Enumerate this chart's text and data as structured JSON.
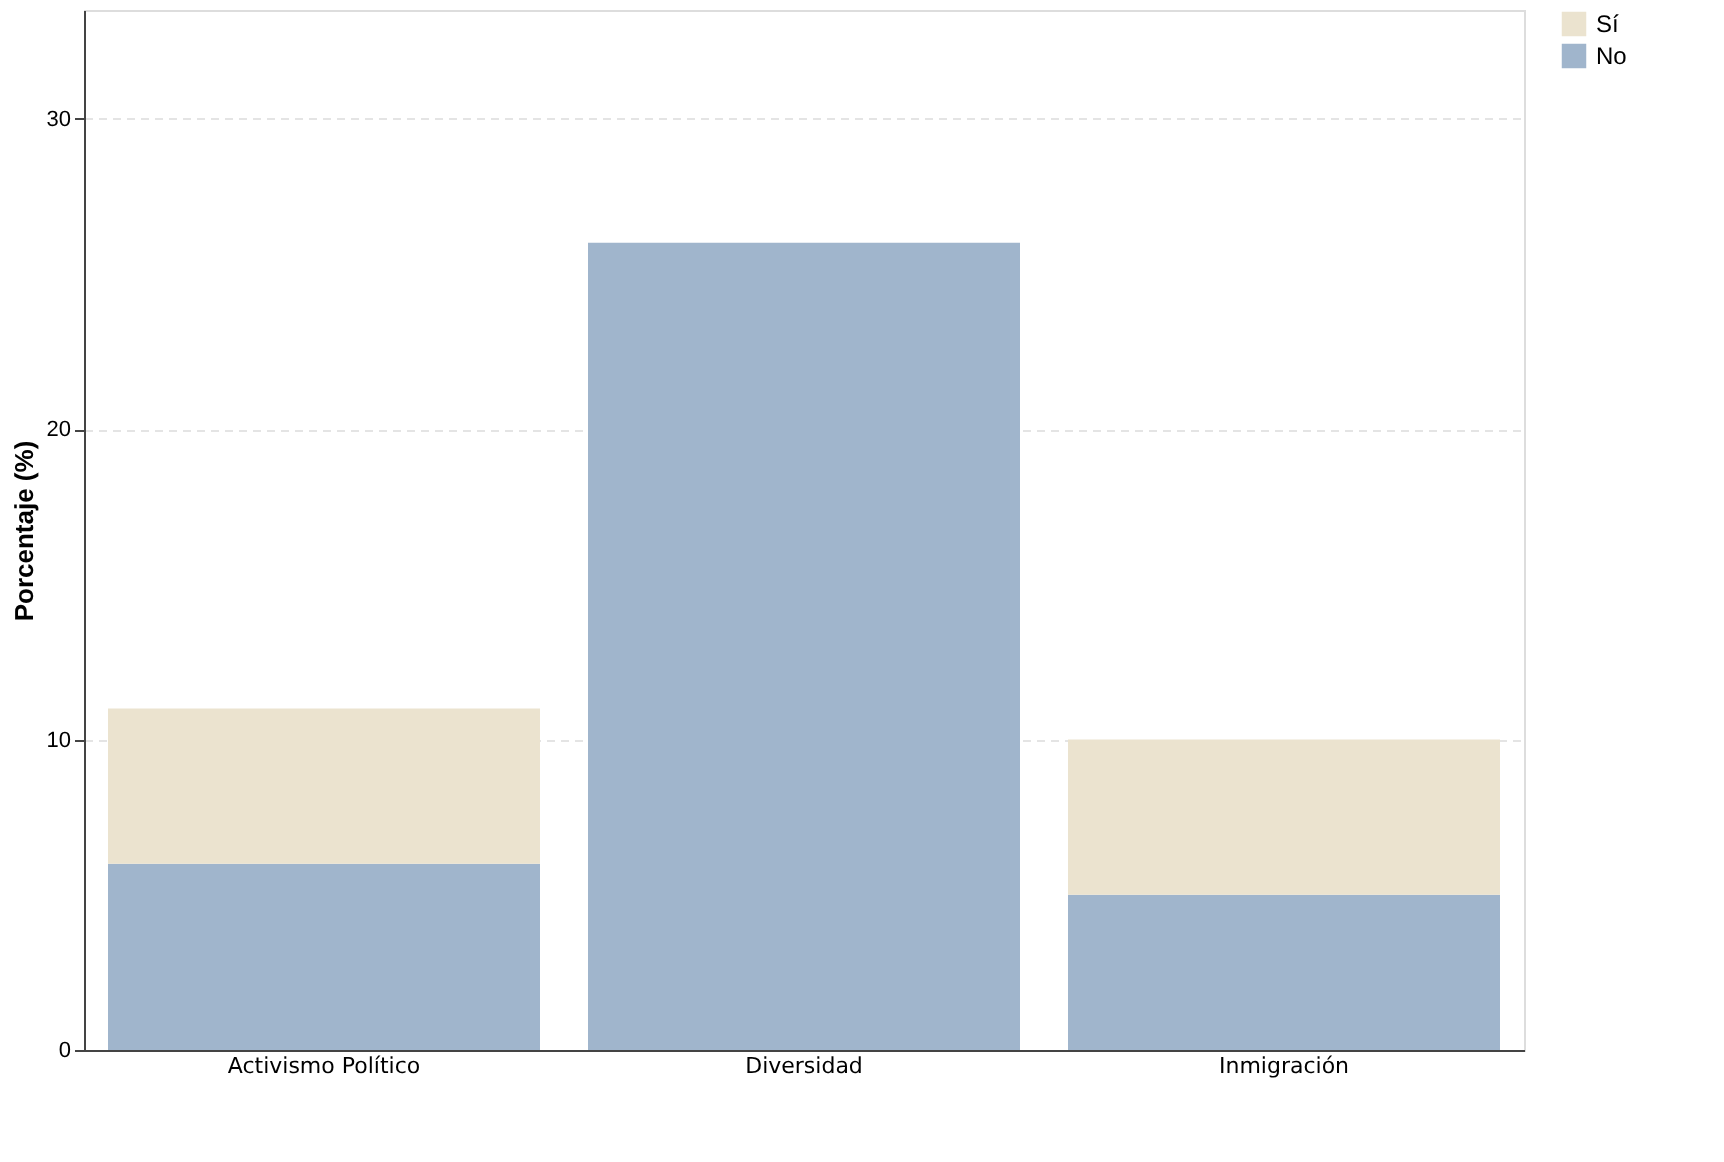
{
  "chart_data": {
    "type": "bar",
    "ylabel": "Porcentaje (%)",
    "categories": [
      "Activismo Político",
      "Diversidad",
      "Inmigración"
    ],
    "stacked": true,
    "series": [
      {
        "name": "No",
        "color": "#a0b5cc",
        "values": [
          6,
          26,
          5
        ]
      },
      {
        "name": "Sí",
        "color": "#ebe3cf",
        "values": [
          5,
          0,
          5
        ]
      }
    ],
    "ylim": [
      0,
      33.5
    ],
    "yticks": [
      0,
      10,
      20,
      30
    ],
    "grid": "y",
    "legend": "top right"
  }
}
